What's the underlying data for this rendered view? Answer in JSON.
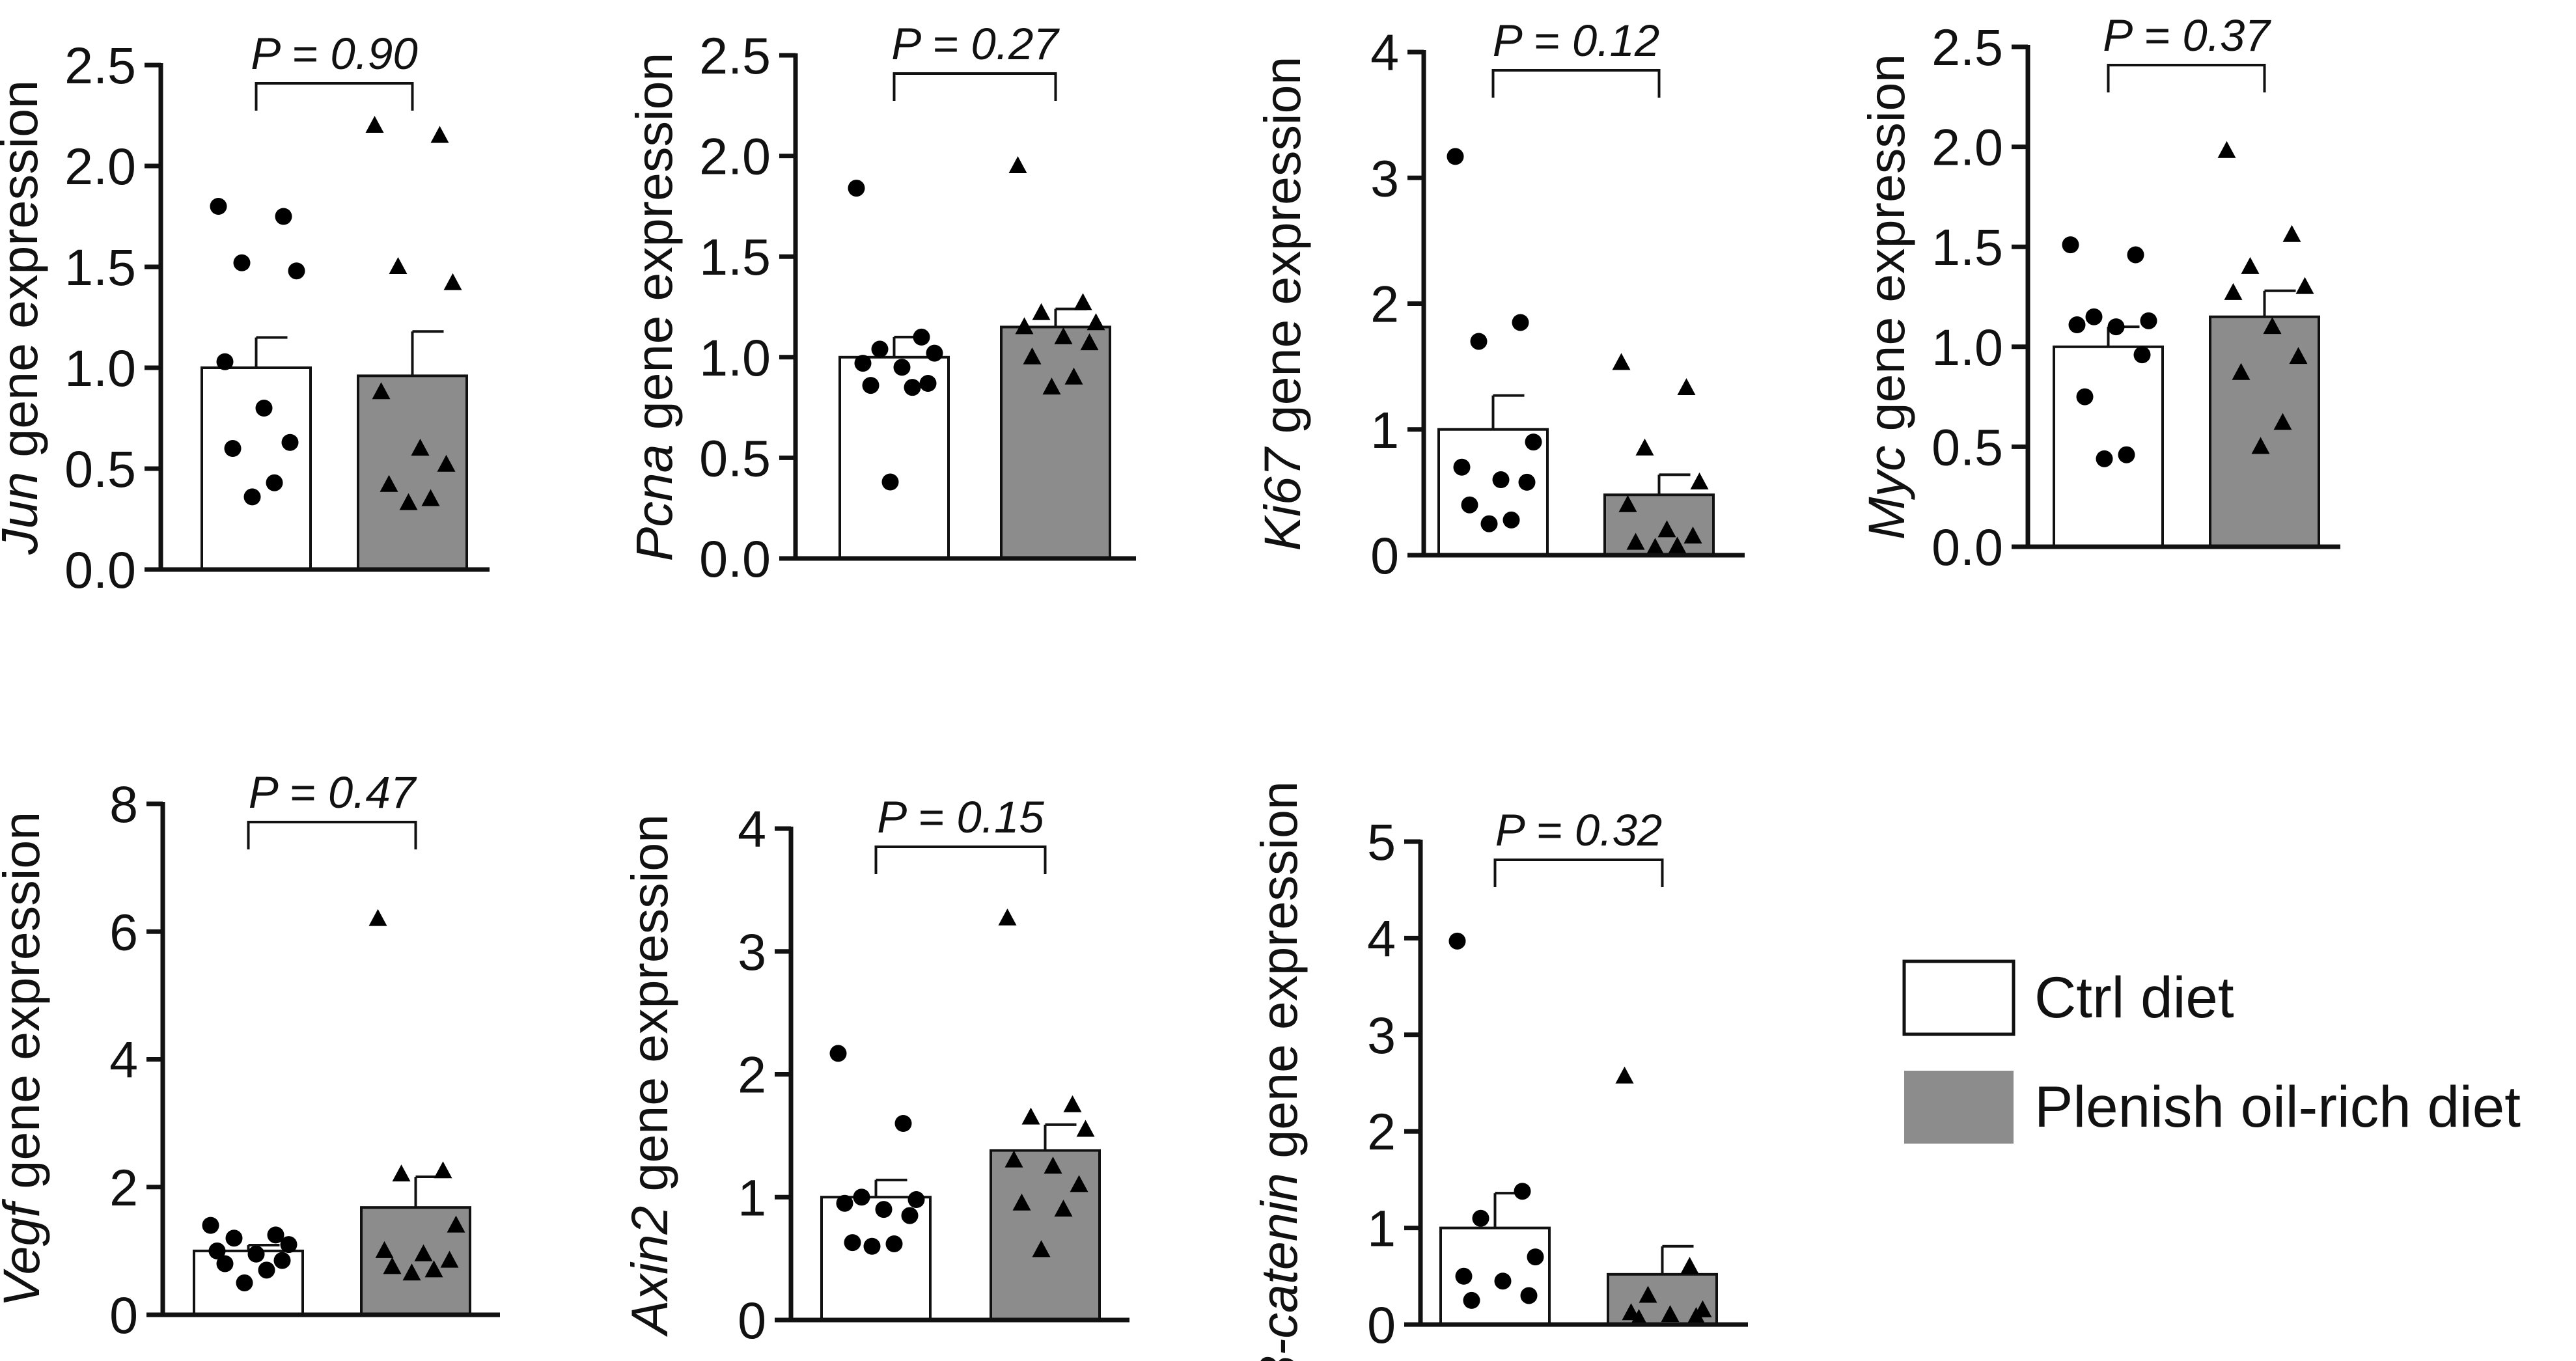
{
  "colors": {
    "ctrl_bar": "#ffffff",
    "plenish_bar": "#8c8c8c",
    "marker": "#000000",
    "axis": "#111111"
  },
  "legend": {
    "items": [
      {
        "label": "Ctrl diet",
        "color": "#ffffff"
      },
      {
        "label": "Plenish oil-rich diet",
        "color": "#8c8c8c"
      }
    ]
  },
  "chart_data": [
    {
      "type": "bar",
      "gene": "Jun",
      "ylabel_rest": " gene expression",
      "p_label": "P = 0.90",
      "ylim": [
        0,
        2.5
      ],
      "ticks": [
        "0.0",
        "0.5",
        "1.0",
        "1.5",
        "2.0",
        "2.5"
      ],
      "series": [
        {
          "name": "Ctrl diet",
          "mean": 1.0,
          "sem": 0.15,
          "marker": "circle",
          "points": [
            1.8,
            1.75,
            1.52,
            1.48,
            1.03,
            0.8,
            0.63,
            0.6,
            0.43,
            0.36
          ]
        },
        {
          "name": "Plenish oil-rich diet",
          "mean": 0.96,
          "sem": 0.22,
          "marker": "triangle",
          "points": [
            2.2,
            2.15,
            1.5,
            1.42,
            0.88,
            0.6,
            0.52,
            0.42,
            0.35,
            0.33
          ]
        }
      ]
    },
    {
      "type": "bar",
      "gene": "Pcna",
      "ylabel_rest": " gene expression",
      "p_label": "P = 0.27",
      "ylim": [
        0,
        2.5
      ],
      "ticks": [
        "0.0",
        "0.5",
        "1.0",
        "1.5",
        "2.0",
        "2.5"
      ],
      "series": [
        {
          "name": "Ctrl diet",
          "mean": 1.0,
          "sem": 0.1,
          "marker": "circle",
          "points": [
            1.84,
            1.1,
            1.04,
            1.02,
            0.97,
            0.95,
            0.87,
            0.86,
            0.85,
            0.38
          ]
        },
        {
          "name": "Plenish oil-rich diet",
          "mean": 1.15,
          "sem": 0.09,
          "marker": "triangle",
          "points": [
            1.95,
            1.27,
            1.22,
            1.17,
            1.15,
            1.1,
            1.07,
            1.0,
            0.9,
            0.85
          ]
        }
      ]
    },
    {
      "type": "bar",
      "gene": "Ki67",
      "ylabel_rest": " gene expression",
      "p_label": "P = 0.12",
      "ylim": [
        0,
        4
      ],
      "ticks": [
        "0",
        "1",
        "2",
        "3",
        "4"
      ],
      "series": [
        {
          "name": "Ctrl diet",
          "mean": 1.0,
          "sem": 0.27,
          "marker": "circle",
          "points": [
            3.17,
            1.85,
            1.7,
            0.9,
            0.7,
            0.6,
            0.58,
            0.4,
            0.28,
            0.25
          ]
        },
        {
          "name": "Plenish oil-rich diet",
          "mean": 0.48,
          "sem": 0.16,
          "marker": "triangle",
          "points": [
            1.53,
            1.33,
            0.85,
            0.58,
            0.4,
            0.2,
            0.15,
            0.1,
            0.07,
            0.06
          ]
        }
      ]
    },
    {
      "type": "bar",
      "gene": "Myc",
      "ylabel_rest": " gene expression",
      "p_label": "P = 0.37",
      "ylim": [
        0,
        2.5
      ],
      "ticks": [
        "0.0",
        "0.5",
        "1.0",
        "1.5",
        "2.0",
        "2.5"
      ],
      "series": [
        {
          "name": "Ctrl diet",
          "mean": 1.0,
          "sem": 0.1,
          "marker": "circle",
          "points": [
            1.51,
            1.46,
            1.15,
            1.13,
            1.11,
            1.1,
            0.96,
            0.75,
            0.46,
            0.44
          ]
        },
        {
          "name": "Plenish oil-rich diet",
          "mean": 1.15,
          "sem": 0.13,
          "marker": "triangle",
          "points": [
            1.98,
            1.56,
            1.4,
            1.3,
            1.27,
            1.1,
            0.95,
            0.87,
            0.62,
            0.5
          ]
        }
      ]
    },
    {
      "type": "bar",
      "gene": "Vegf",
      "ylabel_rest": " gene expression",
      "p_label": "P = 0.47",
      "ylim": [
        0,
        8
      ],
      "ticks": [
        "0",
        "2",
        "4",
        "6",
        "8"
      ],
      "series": [
        {
          "name": "Ctrl diet",
          "mean": 1.0,
          "sem": 0.09,
          "marker": "circle",
          "points": [
            1.4,
            1.25,
            1.2,
            1.1,
            1.0,
            0.95,
            0.85,
            0.8,
            0.7,
            0.5
          ]
        },
        {
          "name": "Plenish oil-rich diet",
          "mean": 1.68,
          "sem": 0.48,
          "marker": "triangle",
          "points": [
            6.2,
            2.25,
            2.2,
            1.4,
            1.0,
            0.95,
            0.85,
            0.75,
            0.7,
            0.65
          ]
        }
      ]
    },
    {
      "type": "bar",
      "gene": "Axin2",
      "ylabel_rest": " gene expression",
      "p_label": "P = 0.15",
      "ylim": [
        0,
        4
      ],
      "ticks": [
        "0",
        "1",
        "2",
        "3",
        "4"
      ],
      "series": [
        {
          "name": "Ctrl diet",
          "mean": 1.0,
          "sem": 0.14,
          "marker": "circle",
          "points": [
            2.17,
            1.6,
            1.0,
            0.98,
            0.95,
            0.9,
            0.85,
            0.63,
            0.62,
            0.6
          ]
        },
        {
          "name": "Plenish oil-rich diet",
          "mean": 1.38,
          "sem": 0.21,
          "marker": "triangle",
          "points": [
            3.27,
            1.75,
            1.65,
            1.55,
            1.3,
            1.25,
            1.1,
            0.95,
            0.9,
            0.57
          ]
        }
      ]
    },
    {
      "type": "bar",
      "gene": "β-catenin",
      "ylabel_rest": " gene expression",
      "p_label": "P = 0.32",
      "ylim": [
        0,
        5
      ],
      "ticks": [
        "0",
        "1",
        "2",
        "3",
        "4",
        "5"
      ],
      "series": [
        {
          "name": "Ctrl diet",
          "mean": 1.0,
          "sem": 0.36,
          "marker": "circle",
          "points": [
            3.97,
            1.38,
            1.1,
            0.7,
            0.5,
            0.45,
            0.3,
            0.25
          ]
        },
        {
          "name": "Plenish oil-rich diet",
          "mean": 0.52,
          "sem": 0.29,
          "marker": "triangle",
          "points": [
            2.57,
            0.6,
            0.3,
            0.15,
            0.12,
            0.1,
            0.08,
            0.06
          ]
        }
      ]
    }
  ]
}
